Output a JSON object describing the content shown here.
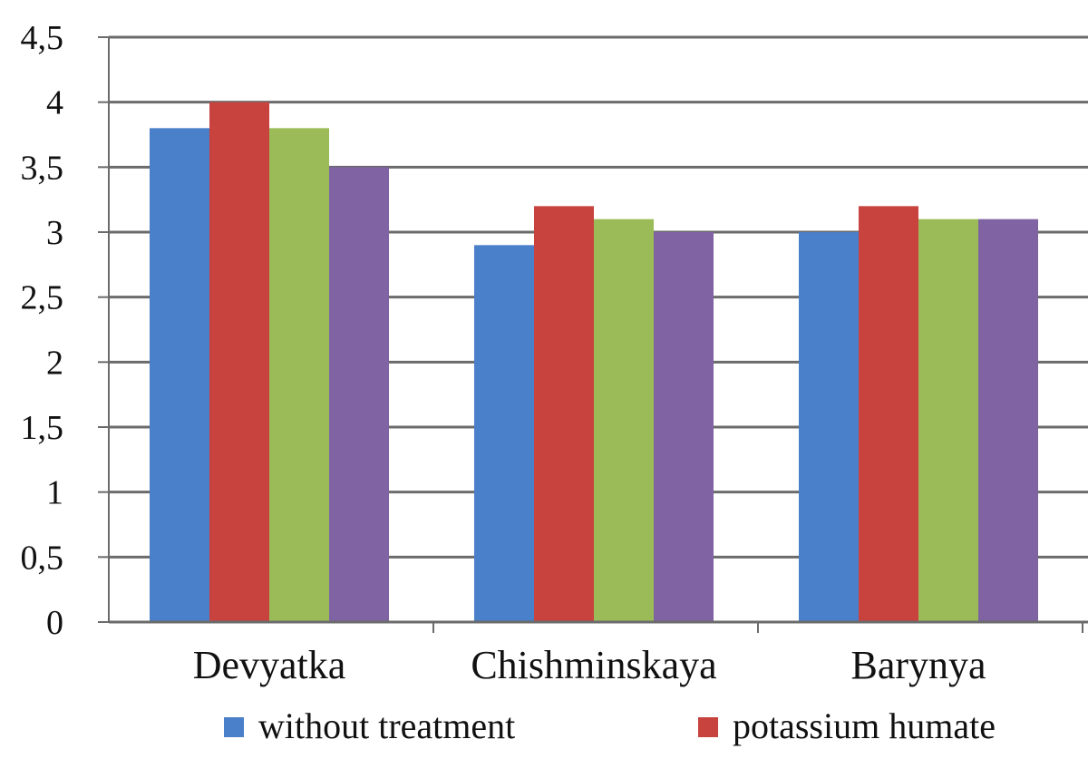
{
  "chart_data": {
    "type": "bar",
    "categories": [
      "Devyatka",
      "Chishminskaya",
      "Barynya"
    ],
    "series": [
      {
        "name": "without treatment",
        "color": "#4a7fc9",
        "values": [
          3.8,
          2.9,
          3.0
        ]
      },
      {
        "name": "potassium humate",
        "color": "#c8423e",
        "values": [
          4.0,
          3.2,
          3.2
        ]
      },
      {
        "color": "#9bbb59",
        "values": [
          3.8,
          3.1,
          3.1
        ]
      },
      {
        "color": "#7f63a3",
        "values": [
          3.5,
          3.0,
          3.1
        ]
      }
    ],
    "yticks": [
      "0",
      "0,5",
      "1",
      "1,5",
      "2",
      "2,5",
      "3",
      "3,5",
      "4",
      "4,5"
    ],
    "ylim": [
      0,
      4.5
    ],
    "grid": true,
    "legend_position": "bottom"
  }
}
